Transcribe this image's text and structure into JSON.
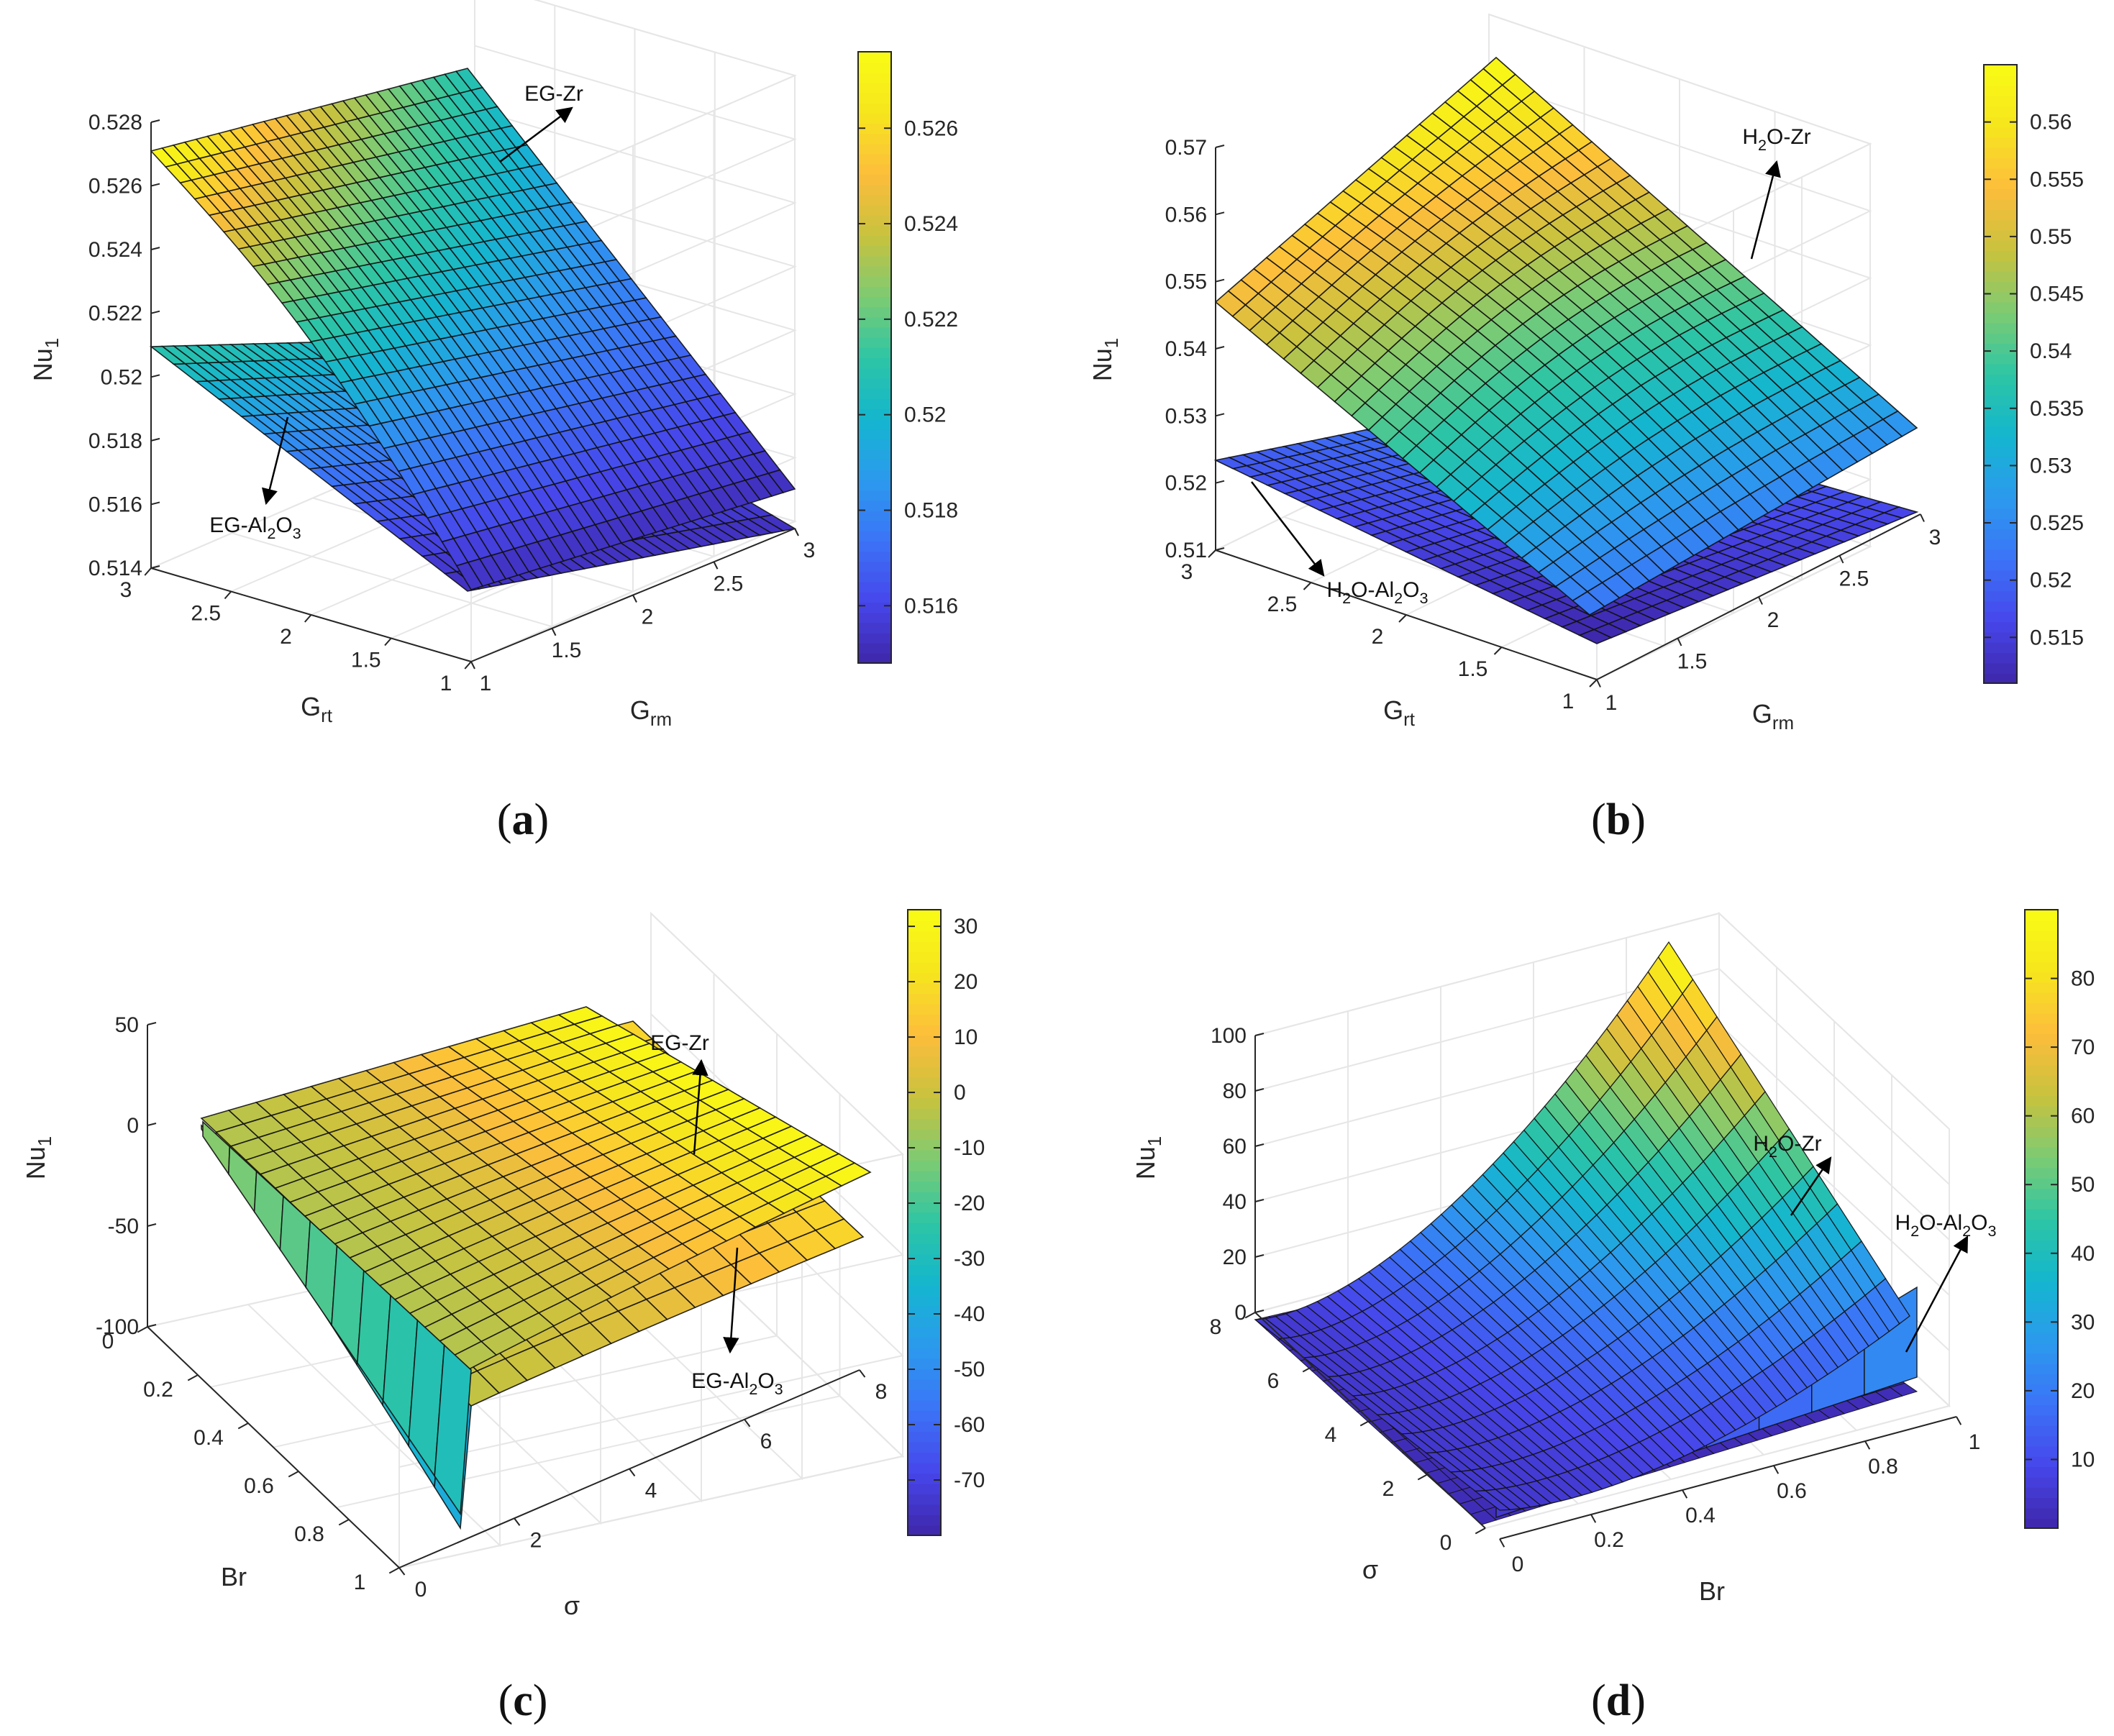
{
  "colormap": [
    "#3e26a8",
    "#4746eb",
    "#3b73f7",
    "#2c99ee",
    "#14b6cf",
    "#2dc5a4",
    "#7dcb73",
    "#c9c23e",
    "#fdbd3c",
    "#f6e51e",
    "#f9fb15"
  ],
  "grid_color": "#e6e6e6",
  "axis_color": "#262626",
  "chart_data": [
    {
      "type": "surface",
      "id": "a",
      "caption": "(a)",
      "caption_letter": "a",
      "zlabel_main": "Nu",
      "zlabel_sub": "1",
      "xlabel_main": "G",
      "xlabel_sub": "rm",
      "ylabel_main": "G",
      "ylabel_sub": "rt",
      "x_range": [
        1,
        3
      ],
      "y_range": [
        1,
        3
      ],
      "zlim": [
        0.514,
        0.528
      ],
      "z_ticks": [
        "0.514",
        "0.516",
        "0.518",
        "0.52",
        "0.522",
        "0.524",
        "0.526",
        "0.528"
      ],
      "x_ticks": [
        "1",
        "1.5",
        "2",
        "2.5",
        "3"
      ],
      "y_ticks": [
        "1",
        "1.5",
        "2",
        "2.5",
        "3"
      ],
      "colorbar_range": [
        0.5148,
        0.5276
      ],
      "colorbar_ticks": [
        "0.516",
        "0.518",
        "0.52",
        "0.522",
        "0.524",
        "0.526"
      ],
      "series": [
        {
          "name": "EG-Zr",
          "corner_values": [
            0.5152,
            0.5186,
            0.5168,
            0.5277
          ]
        },
        {
          "name": "EG-Al2O3",
          "corner_values": [
            0.5152,
            0.5168,
            0.5168,
            0.5212
          ]
        }
      ],
      "annotations": [
        {
          "label": "EG-Zr",
          "parts": [
            [
              "EG-Zr",
              0
            ]
          ]
        },
        {
          "label": "EG-Al2O3",
          "parts": [
            [
              "EG-Al",
              0
            ],
            [
              "2",
              1
            ],
            [
              "O",
              0
            ],
            [
              "3",
              1
            ]
          ]
        }
      ]
    },
    {
      "type": "surface",
      "id": "b",
      "caption": "(b)",
      "caption_letter": "b",
      "zlabel_main": "Nu",
      "zlabel_sub": "1",
      "xlabel_main": "G",
      "xlabel_sub": "rm",
      "ylabel_main": "G",
      "ylabel_sub": "rt",
      "x_range": [
        1,
        3
      ],
      "y_range": [
        1,
        3
      ],
      "zlim": [
        0.51,
        0.57
      ],
      "z_ticks": [
        "0.51",
        "0.52",
        "0.53",
        "0.54",
        "0.55",
        "0.56",
        "0.57"
      ],
      "x_ticks": [
        "1",
        "1.5",
        "2",
        "2.5",
        "3"
      ],
      "y_ticks": [
        "1",
        "1.5",
        "2",
        "2.5",
        "3"
      ],
      "colorbar_range": [
        0.511,
        0.565
      ],
      "colorbar_ticks": [
        "0.515",
        "0.52",
        "0.525",
        "0.53",
        "0.535",
        "0.54",
        "0.545",
        "0.55",
        "0.555",
        "0.56"
      ],
      "series": [
        {
          "name": "H2O-Zr",
          "corner_values": [
            0.531,
            0.531,
            0.55,
            0.565
          ]
        },
        {
          "name": "H2O-Al2O3",
          "corner_values": [
            0.511,
            0.515,
            0.516,
            0.524
          ]
        }
      ],
      "annotations": [
        {
          "label": "H2O-Zr",
          "parts": [
            [
              "H",
              0
            ],
            [
              "2",
              1
            ],
            [
              "O-Zr",
              0
            ]
          ]
        },
        {
          "label": "H2O-Al2O3",
          "parts": [
            [
              "H",
              0
            ],
            [
              "2",
              1
            ],
            [
              "O-Al",
              0
            ],
            [
              "2",
              1
            ],
            [
              "O",
              0
            ],
            [
              "3",
              1
            ]
          ]
        }
      ]
    },
    {
      "type": "surface",
      "id": "c",
      "caption": "(c)",
      "caption_letter": "c",
      "zlabel_main": "Nu",
      "zlabel_sub": "1",
      "xlabel_main": "σ",
      "xlabel_sub": "",
      "ylabel_main": "Br",
      "ylabel_sub": "",
      "x_range": [
        0,
        8
      ],
      "y_range": [
        0,
        1
      ],
      "zlim": [
        -100,
        50
      ],
      "z_ticks": [
        "-100",
        "-50",
        "0",
        "50"
      ],
      "x_ticks": [
        "0",
        "2",
        "4",
        "6",
        "8"
      ],
      "y_ticks": [
        "0",
        "0.2",
        "0.4",
        "0.6",
        "0.8",
        "1"
      ],
      "colorbar_range": [
        -80,
        33
      ],
      "colorbar_ticks": [
        "-70",
        "-60",
        "-50",
        "-40",
        "-30",
        "-20",
        "-10",
        "0",
        "10",
        "20",
        "30"
      ],
      "series": [
        {
          "name": "EG-Zr",
          "values_at_sigma_8": 18,
          "values_near_sigma_0": -100
        },
        {
          "name": "EG-Al2O3",
          "values_at_sigma_8": 8,
          "values_near_sigma_0": -80
        }
      ],
      "annotations": [
        {
          "label": "EG-Zr",
          "parts": [
            [
              "EG-Zr",
              0
            ]
          ]
        },
        {
          "label": "EG-Al2O3",
          "parts": [
            [
              "EG-Al",
              0
            ],
            [
              "2",
              1
            ],
            [
              "O",
              0
            ],
            [
              "3",
              1
            ]
          ]
        }
      ]
    },
    {
      "type": "surface",
      "id": "d",
      "caption": "(d)",
      "caption_letter": "d",
      "zlabel_main": "Nu",
      "zlabel_sub": "1",
      "xlabel_main": "Br",
      "xlabel_sub": "",
      "ylabel_main": "σ",
      "ylabel_sub": "",
      "x_range": [
        0,
        1
      ],
      "y_range": [
        0,
        8
      ],
      "zlim": [
        0,
        100
      ],
      "z_ticks": [
        "0",
        "20",
        "40",
        "60",
        "80",
        "100"
      ],
      "x_ticks": [
        "0",
        "0.2",
        "0.4",
        "0.6",
        "0.8",
        "1"
      ],
      "y_ticks": [
        "0",
        "2",
        "4",
        "6",
        "8"
      ],
      "colorbar_range": [
        0,
        90
      ],
      "colorbar_ticks": [
        "10",
        "20",
        "30",
        "40",
        "50",
        "60",
        "70",
        "80"
      ],
      "series": [
        {
          "name": "H2O-Zr",
          "max_value": 90
        },
        {
          "name": "H2O-Al2O3",
          "max_value": 18
        }
      ],
      "annotations": [
        {
          "label": "H2O-Zr",
          "parts": [
            [
              "H",
              0
            ],
            [
              "2",
              1
            ],
            [
              "O-Zr",
              0
            ]
          ]
        },
        {
          "label": "H2O-Al2O3",
          "parts": [
            [
              "H",
              0
            ],
            [
              "2",
              1
            ],
            [
              "O-Al",
              0
            ],
            [
              "2",
              1
            ],
            [
              "O",
              0
            ],
            [
              "3",
              1
            ]
          ]
        }
      ]
    }
  ]
}
